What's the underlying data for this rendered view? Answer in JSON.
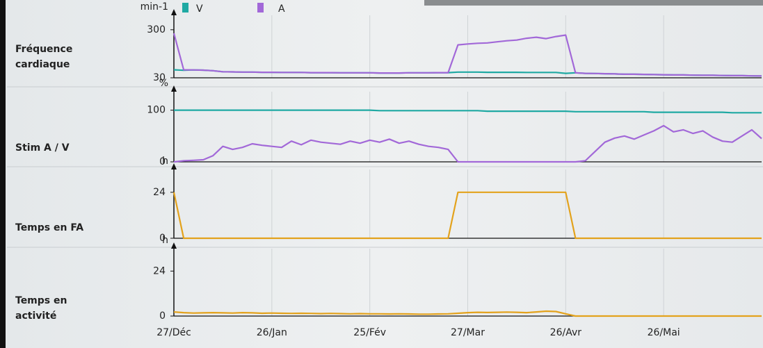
{
  "categories": [
    "27/Déc",
    null,
    null,
    null,
    null,
    null,
    null,
    null,
    null,
    null,
    "26/Jan",
    null,
    null,
    null,
    null,
    null,
    null,
    null,
    null,
    null,
    "25/Fév",
    null,
    null,
    null,
    null,
    null,
    null,
    null,
    null,
    null,
    "27/Mar",
    null,
    null,
    null,
    null,
    null,
    null,
    null,
    null,
    null,
    "26/Avr",
    null,
    null,
    null,
    null,
    null,
    null,
    null,
    null,
    null,
    "26/Mai",
    null,
    null,
    null,
    null,
    null,
    null,
    null,
    null,
    null,
    null
  ],
  "chart_data": [
    {
      "type": "line",
      "title": "Fréquence cardiaque",
      "unit": "min-1",
      "ylim": [
        30,
        350
      ],
      "yticks": [
        30,
        300
      ],
      "legend": "top",
      "series": [
        {
          "name": "V",
          "color": "#1fa9a3",
          "values": [
            75,
            72,
            74,
            73,
            70,
            64,
            63,
            62,
            62,
            61,
            61,
            60,
            60,
            60,
            59,
            59,
            59,
            58,
            58,
            58,
            58,
            57,
            57,
            57,
            58,
            58,
            58,
            59,
            59,
            62,
            62,
            62,
            61,
            61,
            61,
            61,
            60,
            60,
            60,
            60,
            55,
            58,
            55,
            54,
            53,
            52,
            50,
            50,
            49,
            48,
            47,
            46,
            46,
            45,
            44,
            44,
            43,
            42,
            42,
            41,
            40
          ]
        },
        {
          "name": "A",
          "color": "#a268d8",
          "values": [
            280,
            75,
            74,
            73,
            70,
            64,
            63,
            62,
            62,
            61,
            61,
            60,
            60,
            60,
            59,
            59,
            59,
            58,
            58,
            58,
            58,
            57,
            57,
            57,
            58,
            58,
            58,
            59,
            59,
            215,
            220,
            224,
            226,
            232,
            238,
            242,
            252,
            258,
            250,
            262,
            270,
            58,
            55,
            54,
            53,
            52,
            50,
            50,
            49,
            48,
            47,
            46,
            46,
            45,
            44,
            44,
            43,
            42,
            42,
            41,
            40
          ]
        }
      ]
    },
    {
      "type": "line",
      "title": "Stim A / V",
      "unit": "%",
      "ylim": [
        0,
        125
      ],
      "yticks": [
        0,
        100
      ],
      "series": [
        {
          "color": "#1fa9a3",
          "values": [
            100,
            100,
            100,
            100,
            100,
            100,
            100,
            100,
            100,
            100,
            100,
            100,
            100,
            100,
            100,
            100,
            100,
            100,
            100,
            100,
            100,
            99,
            99,
            99,
            99,
            99,
            99,
            99,
            99,
            99,
            99,
            99,
            98,
            98,
            98,
            98,
            98,
            98,
            98,
            98,
            98,
            97,
            97,
            97,
            97,
            97,
            97,
            97,
            97,
            96,
            96,
            96,
            96,
            96,
            96,
            96,
            96,
            95,
            95,
            95,
            95
          ]
        },
        {
          "color": "#a268d8",
          "values": [
            0,
            2,
            3,
            4,
            12,
            30,
            24,
            28,
            35,
            32,
            30,
            28,
            40,
            33,
            42,
            38,
            36,
            34,
            40,
            36,
            42,
            38,
            44,
            36,
            40,
            34,
            30,
            28,
            24,
            0,
            0,
            0,
            0,
            0,
            0,
            0,
            0,
            0,
            0,
            0,
            0,
            0,
            2,
            20,
            38,
            46,
            50,
            44,
            52,
            60,
            70,
            58,
            62,
            55,
            60,
            48,
            40,
            38,
            50,
            62,
            45
          ]
        }
      ]
    },
    {
      "type": "line",
      "title": "Temps en FA",
      "unit": "h",
      "ylim": [
        0,
        33
      ],
      "yticks": [
        0,
        24
      ],
      "series": [
        {
          "color": "#e3a21c",
          "values": [
            24,
            0,
            0,
            0,
            0,
            0,
            0,
            0,
            0,
            0,
            0,
            0,
            0,
            0,
            0,
            0,
            0,
            0,
            0,
            0,
            0,
            0,
            0,
            0,
            0,
            0,
            0,
            0,
            0,
            24,
            24,
            24,
            24,
            24,
            24,
            24,
            24,
            24,
            24,
            24,
            24,
            0,
            0,
            0,
            0,
            0,
            0,
            0,
            0,
            0,
            0,
            0,
            0,
            0,
            0,
            0,
            0,
            0,
            0,
            0,
            0
          ]
        }
      ]
    },
    {
      "type": "line",
      "title": "Temps en activité",
      "unit": "h",
      "ylim": [
        0,
        33
      ],
      "yticks": [
        0,
        24
      ],
      "series": [
        {
          "color": "#e3a21c",
          "values": [
            2.2,
            1.8,
            1.6,
            1.7,
            1.8,
            1.7,
            1.6,
            1.8,
            1.7,
            1.5,
            1.6,
            1.5,
            1.4,
            1.5,
            1.4,
            1.3,
            1.4,
            1.3,
            1.2,
            1.3,
            1.2,
            1.2,
            1.1,
            1.2,
            1.1,
            1.0,
            1.0,
            1.1,
            1.2,
            1.5,
            1.8,
            2.0,
            1.9,
            2.0,
            2.1,
            2.0,
            1.8,
            2.2,
            2.6,
            2.4,
            1.2,
            0,
            0,
            0,
            0,
            0,
            0,
            0,
            0,
            0,
            0,
            0,
            0,
            0,
            0,
            0,
            0,
            0,
            0,
            0,
            0
          ]
        }
      ]
    }
  ]
}
